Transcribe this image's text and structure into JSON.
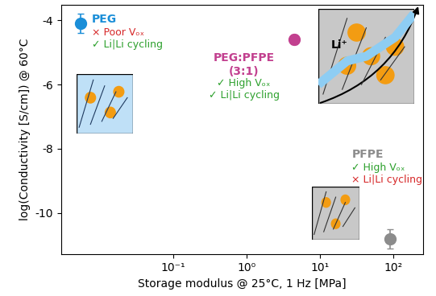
{
  "chart_data": {
    "type": "scatter",
    "xlabel": "Storage modulus @ 25°C, 1 Hz [MPa]",
    "ylabel": "log(Conductivity [S/cm]) @ 60°C",
    "log": "x",
    "grid": false,
    "marker": "o",
    "xlim": [
      0.003,
      250
    ],
    "ylim": [
      -11.3,
      -3.5
    ],
    "xticks": [
      {
        "value": 0.1,
        "label": "10⁻¹"
      },
      {
        "value": 1,
        "label": "10⁰"
      },
      {
        "value": 10,
        "label": "10¹"
      },
      {
        "value": 100,
        "label": "10²"
      }
    ],
    "yticks": [
      -4,
      -6,
      -8,
      -10
    ],
    "series": [
      {
        "name": "PEG",
        "color": "#1a8ed8",
        "x": [
          0.0055
        ],
        "values": [
          -4.1
        ],
        "error": [
          0.3
        ],
        "notes": [
          {
            "text": "× Poor Vₒₓ",
            "color": "#d62728"
          },
          {
            "text": "✓ Li|Li cycling",
            "color": "#2ca02c"
          }
        ]
      },
      {
        "name": "PEG:PFPE\n(3:1)",
        "color": "#c2408f",
        "x": [
          4.4
        ],
        "values": [
          -4.6
        ],
        "error": [
          0.15
        ],
        "notes": [
          {
            "text": "✓ High Vₒₓ",
            "color": "#2ca02c"
          },
          {
            "text": "✓ Li|Li cycling",
            "color": "#2ca02c"
          }
        ]
      },
      {
        "name": "PFPE",
        "color": "#8c8c8c",
        "x": [
          90
        ],
        "values": [
          -10.8
        ],
        "error": [
          0.3
        ],
        "notes": [
          {
            "text": "✓ High Vₒₓ",
            "color": "#2ca02c"
          },
          {
            "text": "× Li|Li cycling",
            "color": "#d62728"
          }
        ]
      }
    ],
    "annotations": [
      {
        "text": "Li⁺"
      }
    ]
  }
}
